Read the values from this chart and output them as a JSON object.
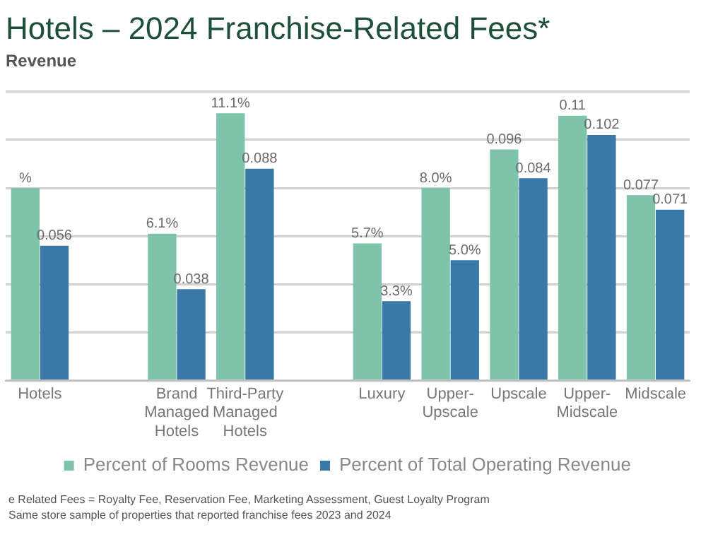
{
  "chart_data": {
    "type": "bar",
    "title": "Hotels – 2024 Franchise-Related Fees*",
    "subtitle": "Revenue",
    "categories": [
      "Hotels",
      null,
      "Brand Managed Hotels",
      "Third-Party Managed Hotels",
      null,
      "Luxury",
      "Upper-Upscale",
      "Upscale",
      "Upper-Midscale",
      "Midscale"
    ],
    "series": [
      {
        "name": "Percent of Rooms Revenue",
        "color": "#7dc4ab",
        "values": [
          0.08,
          null,
          0.061,
          0.111,
          null,
          0.057,
          0.08,
          0.096,
          0.11,
          0.077
        ],
        "value_labels": [
          "%",
          null,
          "6.1%",
          "11.1%",
          null,
          "5.7%",
          "8.0%",
          "0.096",
          "0.11",
          "0.077"
        ]
      },
      {
        "name": "Percent of Total Operating Revenue",
        "color": "#3a78a8",
        "values": [
          0.056,
          null,
          0.038,
          0.088,
          null,
          0.033,
          0.05,
          0.084,
          0.102,
          0.071
        ],
        "value_labels": [
          "0.056",
          null,
          "0.038",
          "0.088",
          null,
          "3.3%",
          "5.0%",
          "0.084",
          "0.102",
          "0.071"
        ]
      }
    ],
    "ylim": [
      0,
      0.12
    ],
    "yticks": [
      {
        "value": 0,
        "label": null
      },
      {
        "value": 0.02,
        "label": null
      },
      {
        "value": 0.04,
        "label": null
      },
      {
        "value": 0.06,
        "label": null
      },
      {
        "value": 0.08,
        "label": null
      },
      {
        "value": 0.1,
        "label": null
      },
      {
        "value": 0.12,
        "label": null
      }
    ],
    "grid": "y",
    "tick_labels": "x",
    "legend": "bottom",
    "annotations": [
      "e Related Fees = Royalty Fee, Reservation Fee, Marketing Assessment, Guest Loyalty Program",
      "Same store sample of properties that reported franchise fees 2023 and 2024"
    ]
  }
}
